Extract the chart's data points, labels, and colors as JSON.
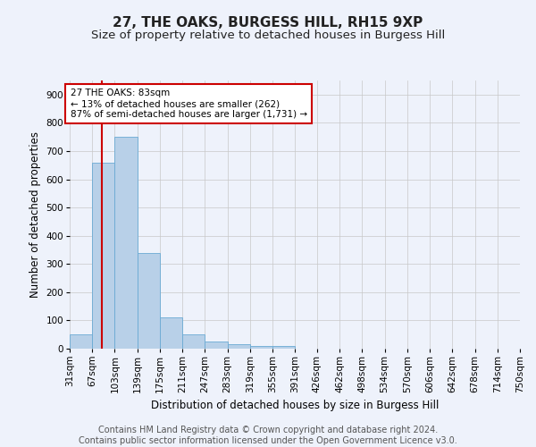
{
  "title": "27, THE OAKS, BURGESS HILL, RH15 9XP",
  "subtitle": "Size of property relative to detached houses in Burgess Hill",
  "xlabel": "Distribution of detached houses by size in Burgess Hill",
  "ylabel": "Number of detached properties",
  "footer_line1": "Contains HM Land Registry data © Crown copyright and database right 2024.",
  "footer_line2": "Contains public sector information licensed under the Open Government Licence v3.0.",
  "bin_edges": [
    31,
    67,
    103,
    139,
    175,
    211,
    247,
    283,
    319,
    355,
    391,
    426,
    462,
    498,
    534,
    570,
    606,
    642,
    678,
    714,
    750
  ],
  "bar_heights": [
    50,
    660,
    750,
    340,
    110,
    50,
    25,
    15,
    10,
    8,
    0,
    0,
    0,
    0,
    0,
    0,
    0,
    0,
    0,
    0
  ],
  "bar_color": "#b8d0e8",
  "bar_edge_color": "#6aaad4",
  "property_size": 83,
  "red_line_color": "#cc0000",
  "annotation_text_line1": "27 THE OAKS: 83sqm",
  "annotation_text_line2": "← 13% of detached houses are smaller (262)",
  "annotation_text_line3": "87% of semi-detached houses are larger (1,731) →",
  "annotation_box_color": "#cc0000",
  "ylim": [
    0,
    950
  ],
  "yticks": [
    0,
    100,
    200,
    300,
    400,
    500,
    600,
    700,
    800,
    900
  ],
  "background_color": "#eef2fb",
  "plot_background_color": "#eef2fb",
  "grid_color": "#c8c8c8",
  "title_fontsize": 11,
  "subtitle_fontsize": 9.5,
  "axis_label_fontsize": 8.5,
  "tick_fontsize": 7.5,
  "footer_fontsize": 7
}
